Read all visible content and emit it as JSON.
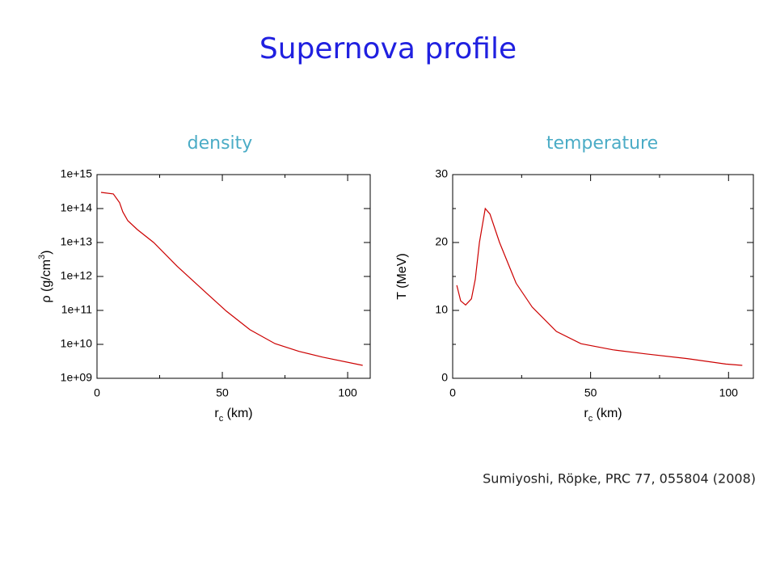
{
  "title": "Supernova profile",
  "citation": "Sumiyoshi, Röpke, PRC 77, 055804 (2008)",
  "chart_data": [
    {
      "type": "line",
      "title": "density",
      "xlabel": [
        "r",
        "c",
        " (km)"
      ],
      "ylabel": [
        "ρ (g/cm",
        "3",
        ")"
      ],
      "log_y": true,
      "color": "#cc0000",
      "xlim": [
        0,
        109
      ],
      "xticks": [
        0,
        50,
        100
      ],
      "xminor": [
        25,
        75
      ],
      "ylim": [
        1000000000.0,
        1000000000000000.0
      ],
      "yticks": [
        {
          "value": 1000000000.0,
          "label": "1e+09"
        },
        {
          "value": 10000000000.0,
          "label": "1e+10"
        },
        {
          "value": 100000000000.0,
          "label": "1e+11"
        },
        {
          "value": 1000000000000.0,
          "label": "1e+12"
        },
        {
          "value": 10000000000000.0,
          "label": "1e+13"
        },
        {
          "value": 100000000000000.0,
          "label": "1e+14"
        },
        {
          "value": 1000000000000000.0,
          "label": "1e+15"
        }
      ],
      "yminor": [],
      "x": [
        1.6,
        6.5,
        9,
        10.3,
        12.3,
        16.1,
        22.6,
        32,
        42,
        51.6,
        61,
        71,
        80.6,
        90,
        106
      ],
      "values": [
        300000000000000.0,
        270000000000000.0,
        150000000000000.0,
        80000000000000.0,
        44000000000000.0,
        24000000000000.0,
        10000000000000.0,
        2000000000000.0,
        420000000000.0,
        95000000000.0,
        27000000000.0,
        10500000000.0,
        6200000000.0,
        4200000000.0,
        2400000000.0
      ]
    },
    {
      "type": "line",
      "title": "temperature",
      "xlabel": [
        "r",
        "c",
        " (km)"
      ],
      "ylabel": [
        "T (MeV)"
      ],
      "log_y": false,
      "color": "#cc0000",
      "xlim": [
        0,
        109
      ],
      "xticks": [
        0,
        50,
        100
      ],
      "xminor": [
        25,
        75
      ],
      "ylim": [
        0,
        30
      ],
      "yticks": [
        0,
        10,
        20,
        30
      ],
      "yminor": [
        5,
        15,
        25
      ],
      "x": [
        1.5,
        2.9,
        4.7,
        6.8,
        8.2,
        9.7,
        11.8,
        13.5,
        17,
        23,
        28.8,
        37.6,
        46.5,
        58,
        70,
        85,
        99,
        105
      ],
      "values": [
        13.7,
        11.4,
        10.8,
        11.7,
        14.6,
        20,
        25,
        24.2,
        20,
        14,
        10.5,
        6.9,
        5.1,
        4.2,
        3.6,
        2.9,
        2.1,
        1.9
      ]
    }
  ]
}
